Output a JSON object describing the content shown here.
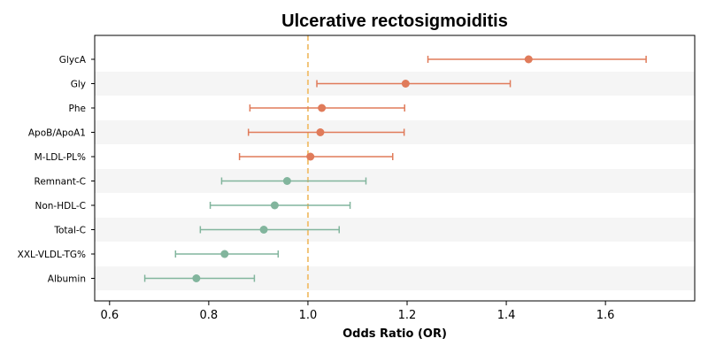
{
  "chart_data": {
    "type": "forest",
    "title": "Ulcerative rectosigmoiditis",
    "xlabel": "Odds Ratio (OR)",
    "ylabel": "",
    "xlim": [
      0.57,
      1.78
    ],
    "xticks": [
      "0.6",
      "0.8",
      "1.0",
      "1.2",
      "1.4",
      "1.6"
    ],
    "reference_line": 1.0,
    "grid": false,
    "colors": {
      "risk": "#e07b5a",
      "protective": "#82b59d",
      "reference": "#f2c479",
      "band": "#f5f5f5"
    },
    "items": [
      {
        "label": "GlycA",
        "or": 1.445,
        "lower": 1.242,
        "upper": 1.682,
        "group": "risk"
      },
      {
        "label": "Gly",
        "or": 1.197,
        "lower": 1.018,
        "upper": 1.408,
        "group": "risk"
      },
      {
        "label": "Phe",
        "or": 1.028,
        "lower": 0.883,
        "upper": 1.195,
        "group": "risk"
      },
      {
        "label": "ApoB/ApoA1",
        "or": 1.025,
        "lower": 0.88,
        "upper": 1.194,
        "group": "risk"
      },
      {
        "label": "M-LDL-PL%",
        "or": 1.005,
        "lower": 0.862,
        "upper": 1.171,
        "group": "risk"
      },
      {
        "label": "Remnant-C",
        "or": 0.958,
        "lower": 0.826,
        "upper": 1.117,
        "group": "protective"
      },
      {
        "label": "Non-HDL-C",
        "or": 0.933,
        "lower": 0.803,
        "upper": 1.085,
        "group": "protective"
      },
      {
        "label": "Total-C",
        "or": 0.911,
        "lower": 0.783,
        "upper": 1.063,
        "group": "protective"
      },
      {
        "label": "XXL-VLDL-TG%",
        "or": 0.832,
        "lower": 0.733,
        "upper": 0.94,
        "group": "protective"
      },
      {
        "label": "Albumin",
        "or": 0.775,
        "lower": 0.671,
        "upper": 0.892,
        "group": "protective"
      }
    ]
  }
}
